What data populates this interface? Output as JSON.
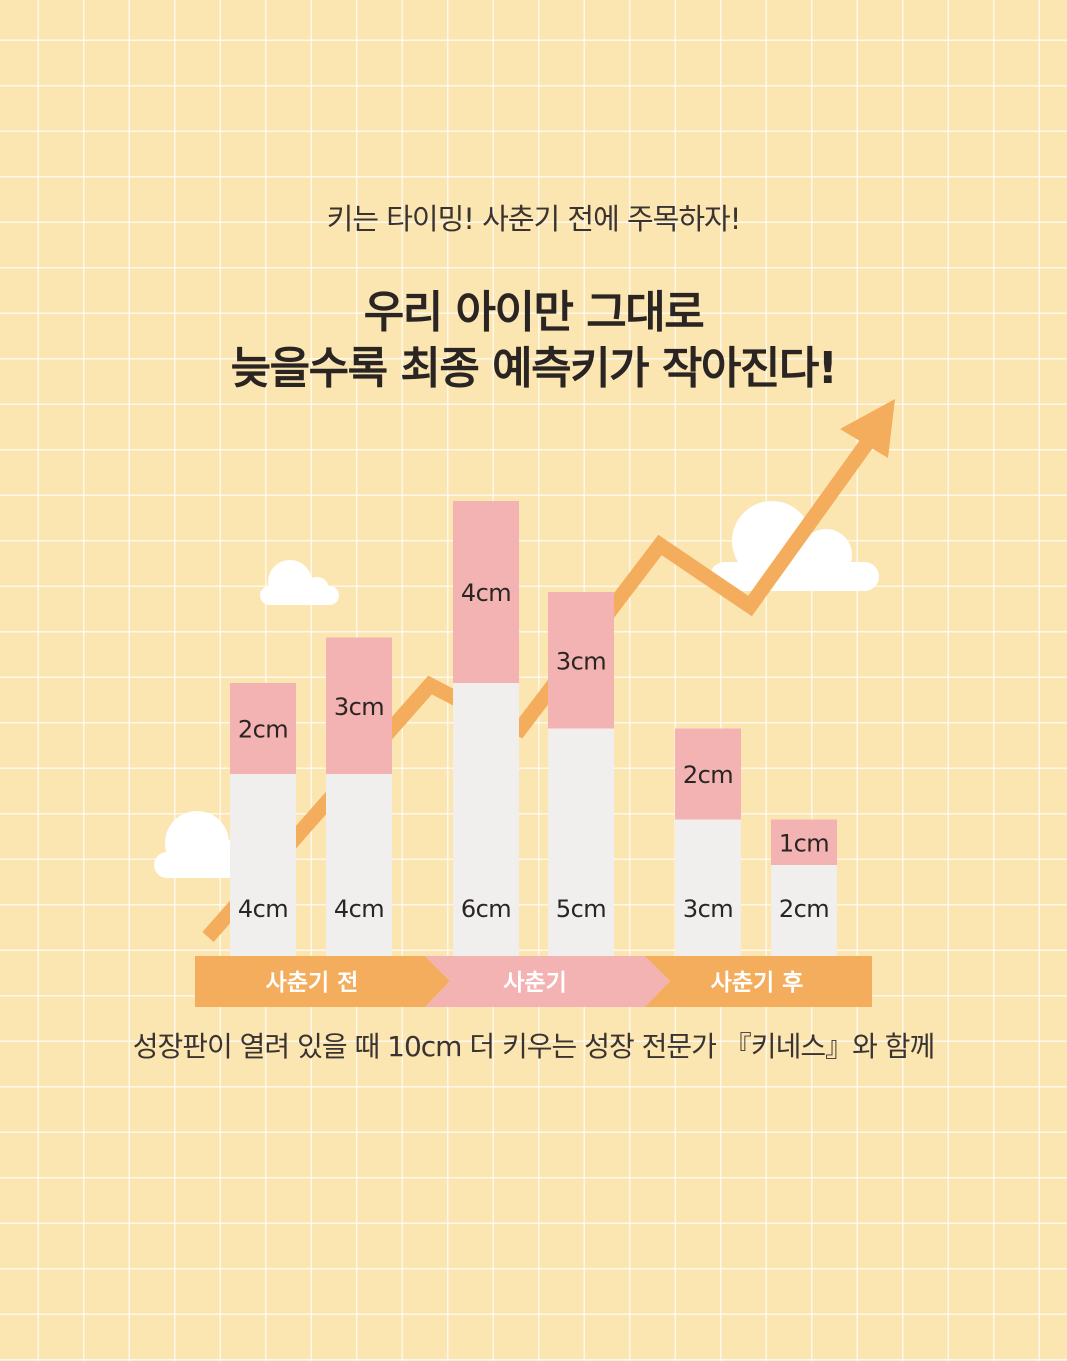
{
  "header": {
    "subtitle": "키는 타이밍! 사춘기 전에 주목하자!",
    "title_line1": "우리 아이만 그대로",
    "title_line2": "늦을수록 최종 예측키가 작아진다!"
  },
  "footer": {
    "caption": "성장판이 열려 있을 때 10cm 더 키우는 성장 전문가 『키네스』와 함께"
  },
  "colors": {
    "background": "#fbe5b1",
    "base_bar": "#f0efee",
    "growth_bar": "#f4b3b3",
    "arrow": "#f4ad5c",
    "phase_orange": "#f4ad5c",
    "phase_pink": "#f4b3b3",
    "cloud": "#ffffff"
  },
  "icons": {
    "clouds": "cloud-icon",
    "trend": "arrow-up-right-icon"
  },
  "chart_data": {
    "type": "bar",
    "stacked": true,
    "unit": "cm",
    "series": [
      {
        "name": "",
        "values": [
          4,
          4,
          6,
          5,
          3,
          2
        ],
        "labels": [
          "4cm",
          "4cm",
          "6cm",
          "5cm",
          "3cm",
          "2cm"
        ]
      },
      {
        "name": "",
        "values": [
          2,
          3,
          4,
          3,
          2,
          1
        ],
        "labels": [
          "2cm",
          "3cm",
          "4cm",
          "3cm",
          "2cm",
          "1cm"
        ]
      }
    ],
    "phases": [
      {
        "label": "사춘기 전",
        "bars": [
          0,
          1
        ]
      },
      {
        "label": "사춘기",
        "bars": [
          2,
          3
        ]
      },
      {
        "label": "사춘기 후",
        "bars": [
          4,
          5
        ]
      }
    ],
    "grid": true,
    "legend": "none"
  }
}
